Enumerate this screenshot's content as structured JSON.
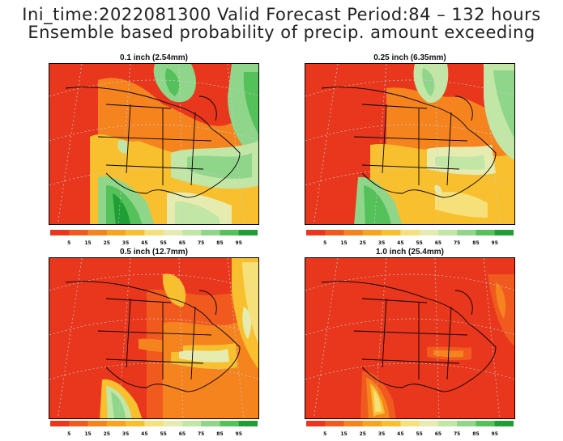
{
  "header": {
    "line1": "Ini_time:2022081300   Valid Forecast Period:84 – 132 hours",
    "line2": "Ensemble based probability of precip. amount exceeding"
  },
  "panels": [
    {
      "id": "p01",
      "title": "0.1 inch (2.54mm)"
    },
    {
      "id": "p025",
      "title": "0.25 inch (6.35mm)"
    },
    {
      "id": "p05",
      "title": "0.5 inch (12.7mm)"
    },
    {
      "id": "p10",
      "title": "1.0 inch (25.4mm)"
    }
  ],
  "colorbar": {
    "labels": [
      "5",
      "15",
      "25",
      "35",
      "45",
      "55",
      "65",
      "75",
      "85",
      "95"
    ],
    "colors": [
      "#e8371c",
      "#f15a1f",
      "#f5841f",
      "#f7a51f",
      "#f8c02e",
      "#f5e079",
      "#e6ecb0",
      "#c2e6a6",
      "#8fd68a",
      "#55c15a",
      "#1e9e34"
    ]
  }
}
